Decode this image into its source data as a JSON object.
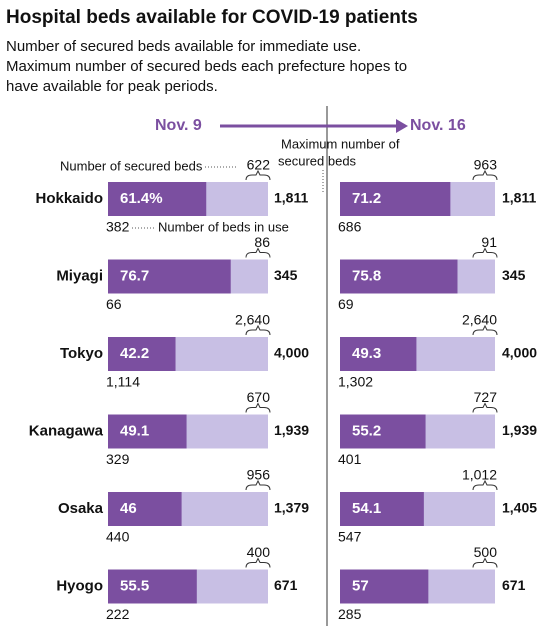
{
  "header": {
    "title": "Hospital beds available for COVID-19 patients",
    "lines": [
      "Number of secured beds available for immediate use.",
      "Maximum number of secured beds each prefecture hopes to",
      "have available for peak periods."
    ]
  },
  "periods": [
    "Nov. 9",
    "Nov. 16"
  ],
  "annotations": {
    "max": [
      "Maximum number of",
      "secured beds"
    ],
    "secured": "Number of secured beds",
    "in_use": "Number of beds in use"
  },
  "rows": [
    {
      "name": "Hokkaido",
      "data": [
        {
          "rate": {
            "value": 61.4,
            "label": "61.4%"
          },
          "secured": 622,
          "in_use": 382,
          "max": {
            "value": 1811,
            "label": "1,811"
          }
        },
        {
          "rate": 71.2,
          "secured": 963,
          "in_use": 686,
          "max": {
            "value": 1811,
            "label": "1,811"
          }
        }
      ]
    },
    {
      "name": "Miyagi",
      "data": [
        {
          "rate": 76.7,
          "secured": 86,
          "in_use": 66,
          "max": 345
        },
        {
          "rate": 75.8,
          "secured": 91,
          "in_use": 69,
          "max": 345
        }
      ]
    },
    {
      "name": "Tokyo",
      "data": [
        {
          "rate": 42.2,
          "secured": {
            "value": 2640,
            "label": "2,640"
          },
          "in_use": {
            "value": 1114,
            "label": "1,114"
          },
          "max": {
            "value": 4000,
            "label": "4,000"
          }
        },
        {
          "rate": 49.3,
          "secured": {
            "value": 2640,
            "label": "2,640"
          },
          "in_use": {
            "value": 1302,
            "label": "1,302"
          },
          "max": {
            "value": 4000,
            "label": "4,000"
          }
        }
      ]
    },
    {
      "name": "Kanagawa",
      "data": [
        {
          "rate": 49.1,
          "secured": 670,
          "in_use": 329,
          "max": {
            "value": 1939,
            "label": "1,939"
          }
        },
        {
          "rate": 55.2,
          "secured": 727,
          "in_use": 401,
          "max": {
            "value": 1939,
            "label": "1,939"
          }
        }
      ]
    },
    {
      "name": "Osaka",
      "data": [
        {
          "rate": 46.0,
          "secured": 956,
          "in_use": 440,
          "max": {
            "value": 1379,
            "label": "1,379"
          }
        },
        {
          "rate": 54.1,
          "secured": {
            "value": 1012,
            "label": "1,012"
          },
          "in_use": 547,
          "max": {
            "value": 1405,
            "label": "1,405"
          }
        }
      ]
    },
    {
      "name": "Hyogo",
      "data": [
        {
          "rate": 55.5,
          "secured": 400,
          "in_use": 222,
          "max": 671
        },
        {
          "rate": 57.0,
          "secured": 500,
          "in_use": 285,
          "max": 671
        }
      ]
    }
  ]
}
